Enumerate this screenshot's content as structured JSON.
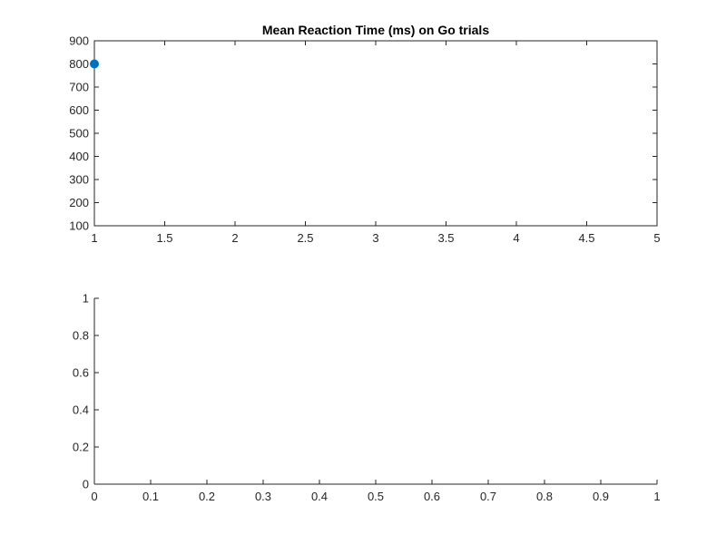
{
  "chart_data": [
    {
      "type": "scatter",
      "title": "Mean Reaction Time (ms) on Go trials",
      "xlabel": "",
      "ylabel": "",
      "xlim": [
        1,
        5
      ],
      "ylim": [
        100,
        900
      ],
      "xticks": [
        "1",
        "1.5",
        "2",
        "2.5",
        "3",
        "3.5",
        "4",
        "4.5",
        "5"
      ],
      "yticks": [
        "100",
        "200",
        "300",
        "400",
        "500",
        "600",
        "700",
        "800",
        "900"
      ],
      "box": true,
      "grid": false,
      "series": [
        {
          "x": [
            1
          ],
          "y": [
            800
          ],
          "color": "#0072BD",
          "marker": "o"
        }
      ]
    },
    {
      "type": "scatter",
      "title": "",
      "xlabel": "",
      "ylabel": "",
      "xlim": [
        0,
        1
      ],
      "ylim": [
        0,
        1
      ],
      "xticks": [
        "0",
        "0.1",
        "0.2",
        "0.3",
        "0.4",
        "0.5",
        "0.6",
        "0.7",
        "0.8",
        "0.9",
        "1"
      ],
      "yticks": [
        "0",
        "0.2",
        "0.4",
        "0.6",
        "0.8",
        "1"
      ],
      "box": false,
      "grid": false,
      "series": []
    }
  ]
}
